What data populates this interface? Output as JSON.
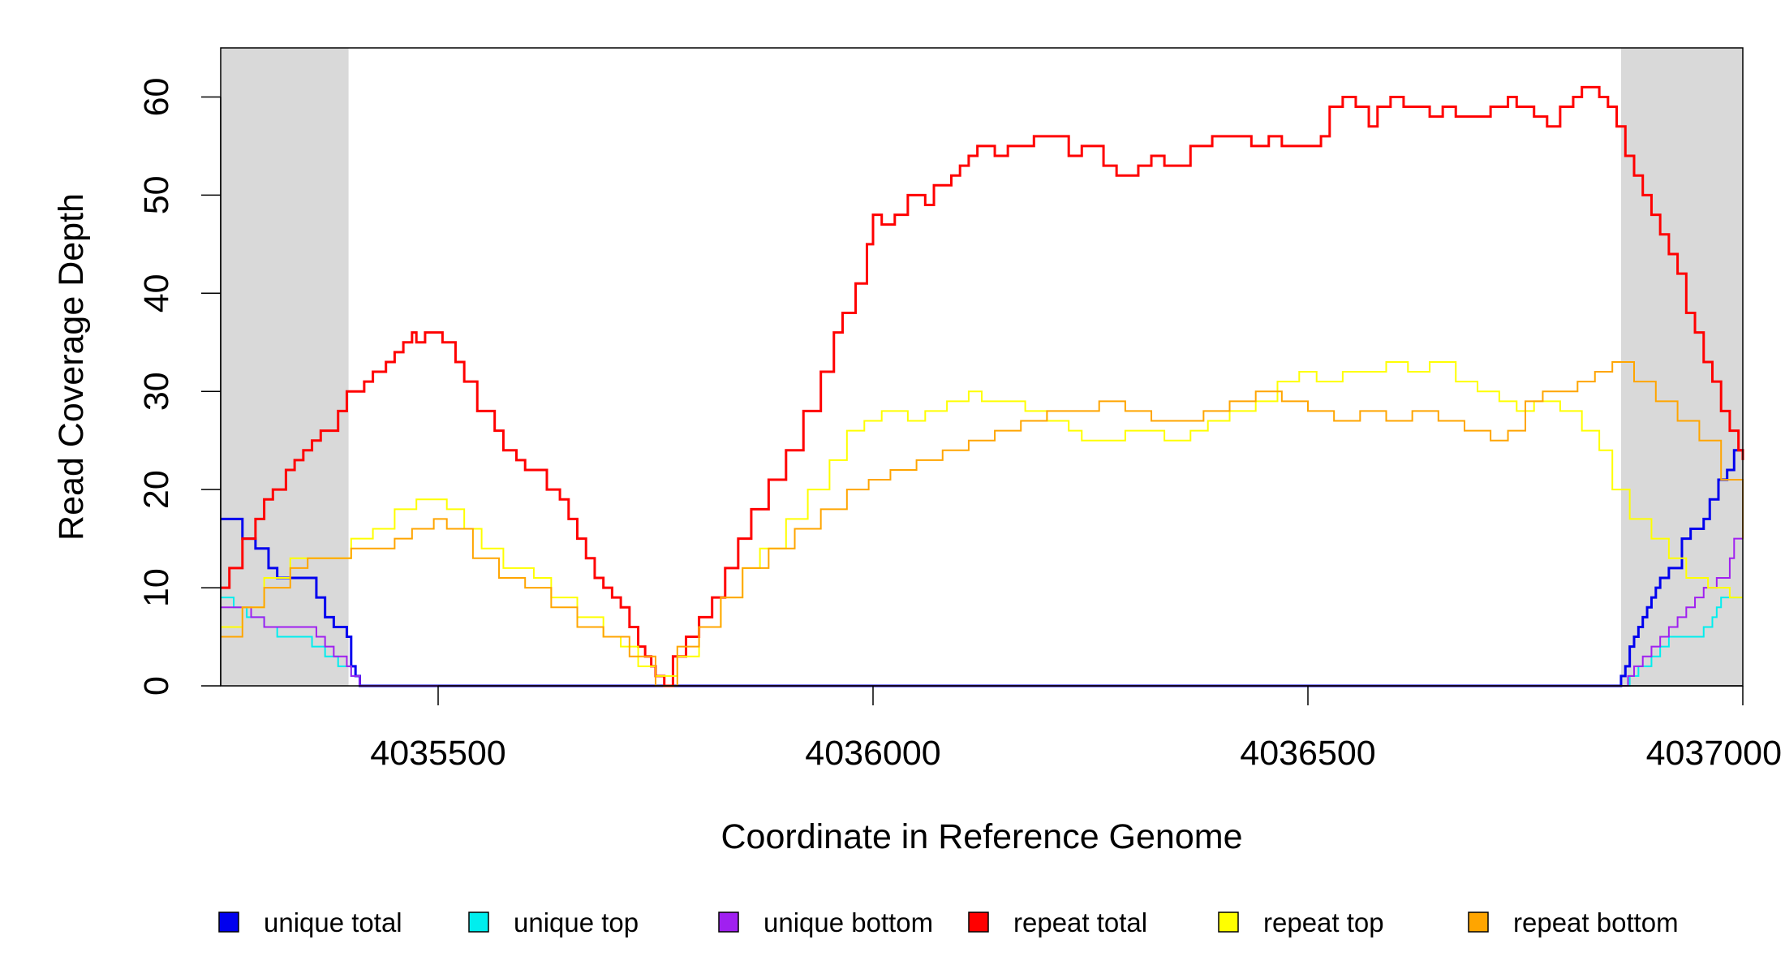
{
  "chart_data": {
    "type": "line",
    "title": "",
    "xlabel": "Coordinate in Reference Genome",
    "ylabel": "Read Coverage Depth",
    "xlim": [
      4035250,
      4037000
    ],
    "ylim": [
      0,
      65
    ],
    "x_ticks": [
      4035500,
      4036000,
      4036500,
      4037000
    ],
    "x_tick_labels": [
      "4035500",
      "4036000",
      "4036500",
      "4037000"
    ],
    "y_ticks": [
      0,
      10,
      20,
      30,
      40,
      50,
      60
    ],
    "y_tick_labels": [
      "0",
      "10",
      "20",
      "30",
      "40",
      "50",
      "60"
    ],
    "shaded_regions": [
      {
        "x_start": 4035250,
        "x_end": 4035397,
        "color": "#d9d9d9"
      },
      {
        "x_start": 4036860,
        "x_end": 4037000,
        "color": "#d9d9d9"
      }
    ],
    "legend_position": "bottom",
    "series": [
      {
        "name": "unique total",
        "color": "#0000ee",
        "width": 3,
        "x": [
          4035250,
          4035265,
          4035275,
          4035290,
          4035305,
          4035315,
          4035350,
          4035360,
          4035370,
          4035380,
          4035395,
          4035400,
          4035405,
          4035410,
          4036855,
          4036860,
          4036865,
          4036870,
          4036875,
          4036880,
          4036885,
          4036890,
          4036895,
          4036900,
          4036905,
          4036915,
          4036930,
          4036940,
          4036945,
          4036955,
          4036962,
          4036972,
          4036982,
          4036990,
          4037000
        ],
        "y": [
          17,
          17,
          15,
          14,
          12,
          11,
          11,
          9,
          7,
          6,
          5,
          2,
          1,
          0,
          0,
          1,
          2,
          4,
          5,
          6,
          7,
          8,
          9,
          10,
          11,
          12,
          15,
          16,
          16,
          17,
          19,
          21,
          22,
          24,
          24
        ],
        "step": true
      },
      {
        "name": "unique top",
        "color": "#00eeee",
        "width": 2,
        "x": [
          4035250,
          4035265,
          4035280,
          4035300,
          4035315,
          4035340,
          4035355,
          4035370,
          4035385,
          4035395,
          4035400,
          4035405,
          4035410,
          4036865,
          4036870,
          4036880,
          4036895,
          4036905,
          4036915,
          4036940,
          4036955,
          4036965,
          4036970,
          4036975,
          4037000
        ],
        "y": [
          9,
          8,
          7,
          6,
          5,
          5,
          4,
          3,
          2,
          2,
          1,
          1,
          0,
          0,
          1,
          2,
          3,
          4,
          5,
          5,
          6,
          7,
          8,
          9,
          9
        ],
        "step": true
      },
      {
        "name": "unique bottom",
        "color": "#a020f0",
        "width": 2,
        "x": [
          4035250,
          4035268,
          4035285,
          4035300,
          4035350,
          4035360,
          4035370,
          4035380,
          4035395,
          4035400,
          4035405,
          4035410,
          4036860,
          4036868,
          4036875,
          4036885,
          4036895,
          4036905,
          4036915,
          4036925,
          4036935,
          4036945,
          4036955,
          4036970,
          4036985,
          4036990,
          4037000
        ],
        "y": [
          8,
          8,
          7,
          6,
          6,
          5,
          4,
          3,
          2,
          1,
          1,
          0,
          0,
          1,
          2,
          3,
          4,
          5,
          6,
          7,
          8,
          9,
          10,
          11,
          13,
          15,
          15
        ],
        "step": true
      },
      {
        "name": "repeat total",
        "color": "#ff0000",
        "width": 3,
        "x": [
          4035250,
          4035260,
          4035275,
          4035290,
          4035300,
          4035310,
          4035325,
          4035335,
          4035345,
          4035355,
          4035365,
          4035375,
          4035385,
          4035395,
          4035400,
          4035415,
          4035425,
          4035440,
          4035450,
          4035460,
          4035470,
          4035475,
          4035480,
          4035485,
          4035495,
          4035505,
          4035520,
          4035530,
          4035545,
          4035565,
          4035575,
          4035590,
          4035600,
          4035610,
          4035625,
          4035640,
          4035650,
          4035660,
          4035670,
          4035680,
          4035690,
          4035700,
          4035710,
          4035720,
          4035730,
          4035738,
          4035745,
          4035750,
          4035760,
          4035770,
          4035785,
          4035800,
          4035815,
          4035830,
          4035845,
          4035860,
          4035880,
          4035900,
          4035920,
          4035940,
          4035955,
          4035965,
          4035980,
          4035993,
          4036000,
          4036010,
          4036025,
          4036040,
          4036050,
          4036060,
          4036070,
          4036080,
          4036090,
          4036100,
          4036110,
          4036120,
          4036130,
          4036140,
          4036155,
          4036170,
          4036185,
          4036200,
          4036215,
          4036225,
          4036240,
          4036250,
          4036265,
          4036280,
          4036295,
          4036305,
          4036320,
          4036335,
          4036350,
          4036365,
          4036375,
          4036390,
          4036400,
          4036420,
          4036435,
          4036455,
          4036470,
          4036490,
          4036505,
          4036515,
          4036525,
          4036540,
          4036555,
          4036570,
          4036580,
          4036595,
          4036610,
          4036625,
          4036640,
          4036655,
          4036670,
          4036685,
          4036700,
          4036710,
          4036720,
          4036730,
          4036740,
          4036750,
          4036760,
          4036775,
          4036790,
          4036805,
          4036815,
          4036825,
          4036835,
          4036845,
          4036855,
          4036865,
          4036875,
          4036885,
          4036895,
          4036905,
          4036915,
          4036925,
          4036935,
          4036945,
          4036955,
          4036965,
          4036975,
          4036985,
          4036995,
          4037000
        ],
        "y": [
          10,
          12,
          15,
          17,
          19,
          20,
          22,
          23,
          24,
          25,
          26,
          26,
          28,
          30,
          30,
          31,
          32,
          33,
          34,
          35,
          36,
          35,
          35,
          36,
          36,
          35,
          33,
          31,
          28,
          26,
          24,
          23,
          22,
          22,
          20,
          19,
          17,
          15,
          13,
          11,
          10,
          9,
          8,
          6,
          4,
          3,
          2,
          1,
          0,
          3,
          5,
          7,
          9,
          12,
          15,
          18,
          21,
          24,
          28,
          32,
          36,
          38,
          41,
          45,
          48,
          47,
          48,
          50,
          50,
          49,
          51,
          51,
          52,
          53,
          54,
          55,
          55,
          54,
          55,
          55,
          56,
          56,
          56,
          54,
          55,
          55,
          53,
          52,
          52,
          53,
          54,
          53,
          53,
          55,
          55,
          56,
          56,
          56,
          55,
          56,
          55,
          55,
          55,
          56,
          59,
          60,
          59,
          57,
          59,
          60,
          59,
          59,
          58,
          59,
          58,
          58,
          58,
          59,
          59,
          60,
          59,
          59,
          58,
          57,
          59,
          60,
          61,
          61,
          60,
          59,
          57,
          54,
          52,
          50,
          48,
          46,
          44,
          42,
          38,
          36,
          33,
          31,
          28,
          26,
          24,
          23
        ],
        "step": true
      },
      {
        "name": "repeat top",
        "color": "#ffff00",
        "width": 2,
        "x": [
          4035250,
          4035275,
          4035300,
          4035330,
          4035350,
          4035370,
          4035400,
          4035425,
          4035450,
          4035475,
          4035495,
          4035510,
          4035530,
          4035550,
          4035575,
          4035595,
          4035610,
          4035630,
          4035660,
          4035690,
          4035710,
          4035730,
          4035750,
          4035775,
          4035800,
          4035825,
          4035850,
          4035870,
          4035900,
          4035925,
          4035950,
          4035970,
          4035990,
          4036010,
          4036040,
          4036060,
          4036085,
          4036110,
          4036125,
          4036150,
          4036175,
          4036200,
          4036225,
          4036240,
          4036265,
          4036290,
          4036315,
          4036335,
          4036365,
          4036385,
          4036410,
          4036440,
          4036465,
          4036490,
          4036510,
          4036540,
          4036570,
          4036590,
          4036615,
          4036640,
          4036670,
          4036695,
          4036720,
          4036740,
          4036760,
          4036790,
          4036815,
          4036835,
          4036850,
          4036870,
          4036895,
          4036915,
          4036935,
          4036960,
          4036985,
          4037000
        ],
        "y": [
          6,
          8,
          11,
          13,
          13,
          13,
          15,
          16,
          18,
          19,
          19,
          18,
          16,
          14,
          12,
          12,
          11,
          9,
          7,
          5,
          4,
          2,
          1,
          3,
          6,
          9,
          12,
          14,
          17,
          20,
          23,
          26,
          27,
          28,
          27,
          28,
          29,
          30,
          29,
          29,
          28,
          27,
          26,
          25,
          25,
          26,
          26,
          25,
          26,
          27,
          28,
          29,
          31,
          32,
          31,
          32,
          32,
          33,
          32,
          33,
          31,
          30,
          29,
          28,
          29,
          28,
          26,
          24,
          20,
          17,
          15,
          13,
          11,
          10,
          9,
          9
        ],
        "step": true
      },
      {
        "name": "repeat bottom",
        "color": "#ffa500",
        "width": 2,
        "x": [
          4035250,
          4035275,
          4035300,
          4035330,
          4035350,
          4035375,
          4035400,
          4035425,
          4035450,
          4035470,
          4035495,
          4035510,
          4035540,
          4035570,
          4035600,
          4035630,
          4035660,
          4035690,
          4035720,
          4035750,
          4035775,
          4035800,
          4035825,
          4035850,
          4035880,
          4035910,
          4035940,
          4035970,
          4035995,
          4036020,
          4036050,
          4036080,
          4036110,
          4036140,
          4036170,
          4036200,
          4036230,
          4036260,
          4036290,
          4036320,
          4036350,
          4036380,
          4036410,
          4036440,
          4036470,
          4036500,
          4036530,
          4036560,
          4036590,
          4036620,
          4036650,
          4036680,
          4036710,
          4036730,
          4036750,
          4036770,
          4036790,
          4036810,
          4036830,
          4036850,
          4036875,
          4036900,
          4036925,
          4036950,
          4036975,
          4037000
        ],
        "y": [
          5,
          8,
          10,
          12,
          13,
          13,
          14,
          14,
          15,
          16,
          17,
          16,
          13,
          11,
          10,
          8,
          6,
          5,
          3,
          0,
          4,
          6,
          9,
          12,
          14,
          16,
          18,
          20,
          21,
          22,
          23,
          24,
          25,
          26,
          27,
          28,
          28,
          29,
          28,
          27,
          27,
          28,
          29,
          30,
          29,
          28,
          27,
          28,
          27,
          28,
          27,
          26,
          25,
          26,
          29,
          30,
          30,
          31,
          32,
          33,
          31,
          29,
          27,
          25,
          21,
          15
        ],
        "step": true
      }
    ],
    "legend": [
      {
        "name": "unique total",
        "color": "#0000ee"
      },
      {
        "name": "unique top",
        "color": "#00eeee"
      },
      {
        "name": "unique bottom",
        "color": "#a020f0"
      },
      {
        "name": "repeat total",
        "color": "#ff0000"
      },
      {
        "name": "repeat top",
        "color": "#ffff00"
      },
      {
        "name": "repeat bottom",
        "color": "#ffa500"
      }
    ]
  }
}
